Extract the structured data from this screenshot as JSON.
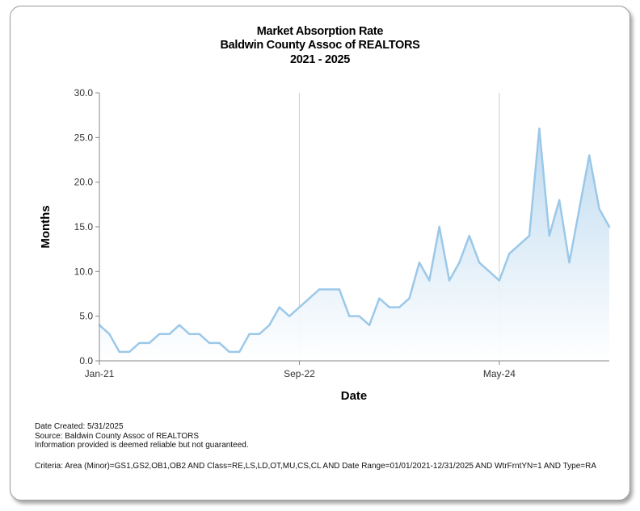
{
  "chart_data": {
    "type": "area",
    "title": "Market Absorption Rate",
    "subtitle": "Baldwin County Assoc of REALTORS",
    "period": "2021 - 2025",
    "xlabel": "Date",
    "ylabel": "Months",
    "ylim": [
      0,
      30
    ],
    "yticks": [
      "0.0",
      "5.0",
      "10.0",
      "15.0",
      "20.0",
      "25.0",
      "30.0"
    ],
    "xticks": [
      {
        "label": "Jan-21",
        "index": 0
      },
      {
        "label": "Sep-22",
        "index": 20
      },
      {
        "label": "May-24",
        "index": 40
      }
    ],
    "grid": "vertical-at-ticks",
    "series": [
      {
        "color": "#9cc8e8",
        "values": [
          4,
          3,
          1,
          1,
          2,
          2,
          3,
          3,
          4,
          3,
          3,
          2,
          2,
          1,
          1,
          3,
          3,
          4,
          6,
          5,
          6,
          7,
          8,
          8,
          8,
          5,
          5,
          4,
          7,
          6,
          6,
          7,
          11,
          9,
          15,
          9,
          11,
          14,
          11,
          10,
          9,
          12,
          13,
          14,
          26,
          14,
          18,
          11,
          17,
          23,
          17,
          15
        ]
      }
    ]
  },
  "footer": {
    "date_created": "Date Created: 5/31/2025",
    "source": "Source: Baldwin County Assoc of REALTORS",
    "disclaimer": "Information provided is deemed reliable but not guaranteed.",
    "criteria": "Criteria: Area (Minor)=GS1,GS2,OB1,OB2 AND Class=RE,LS,LD,OT,MU,CS,CL AND Date Range=01/01/2021-12/31/2025 AND WtrFrntYN=1 AND Type=RA"
  }
}
